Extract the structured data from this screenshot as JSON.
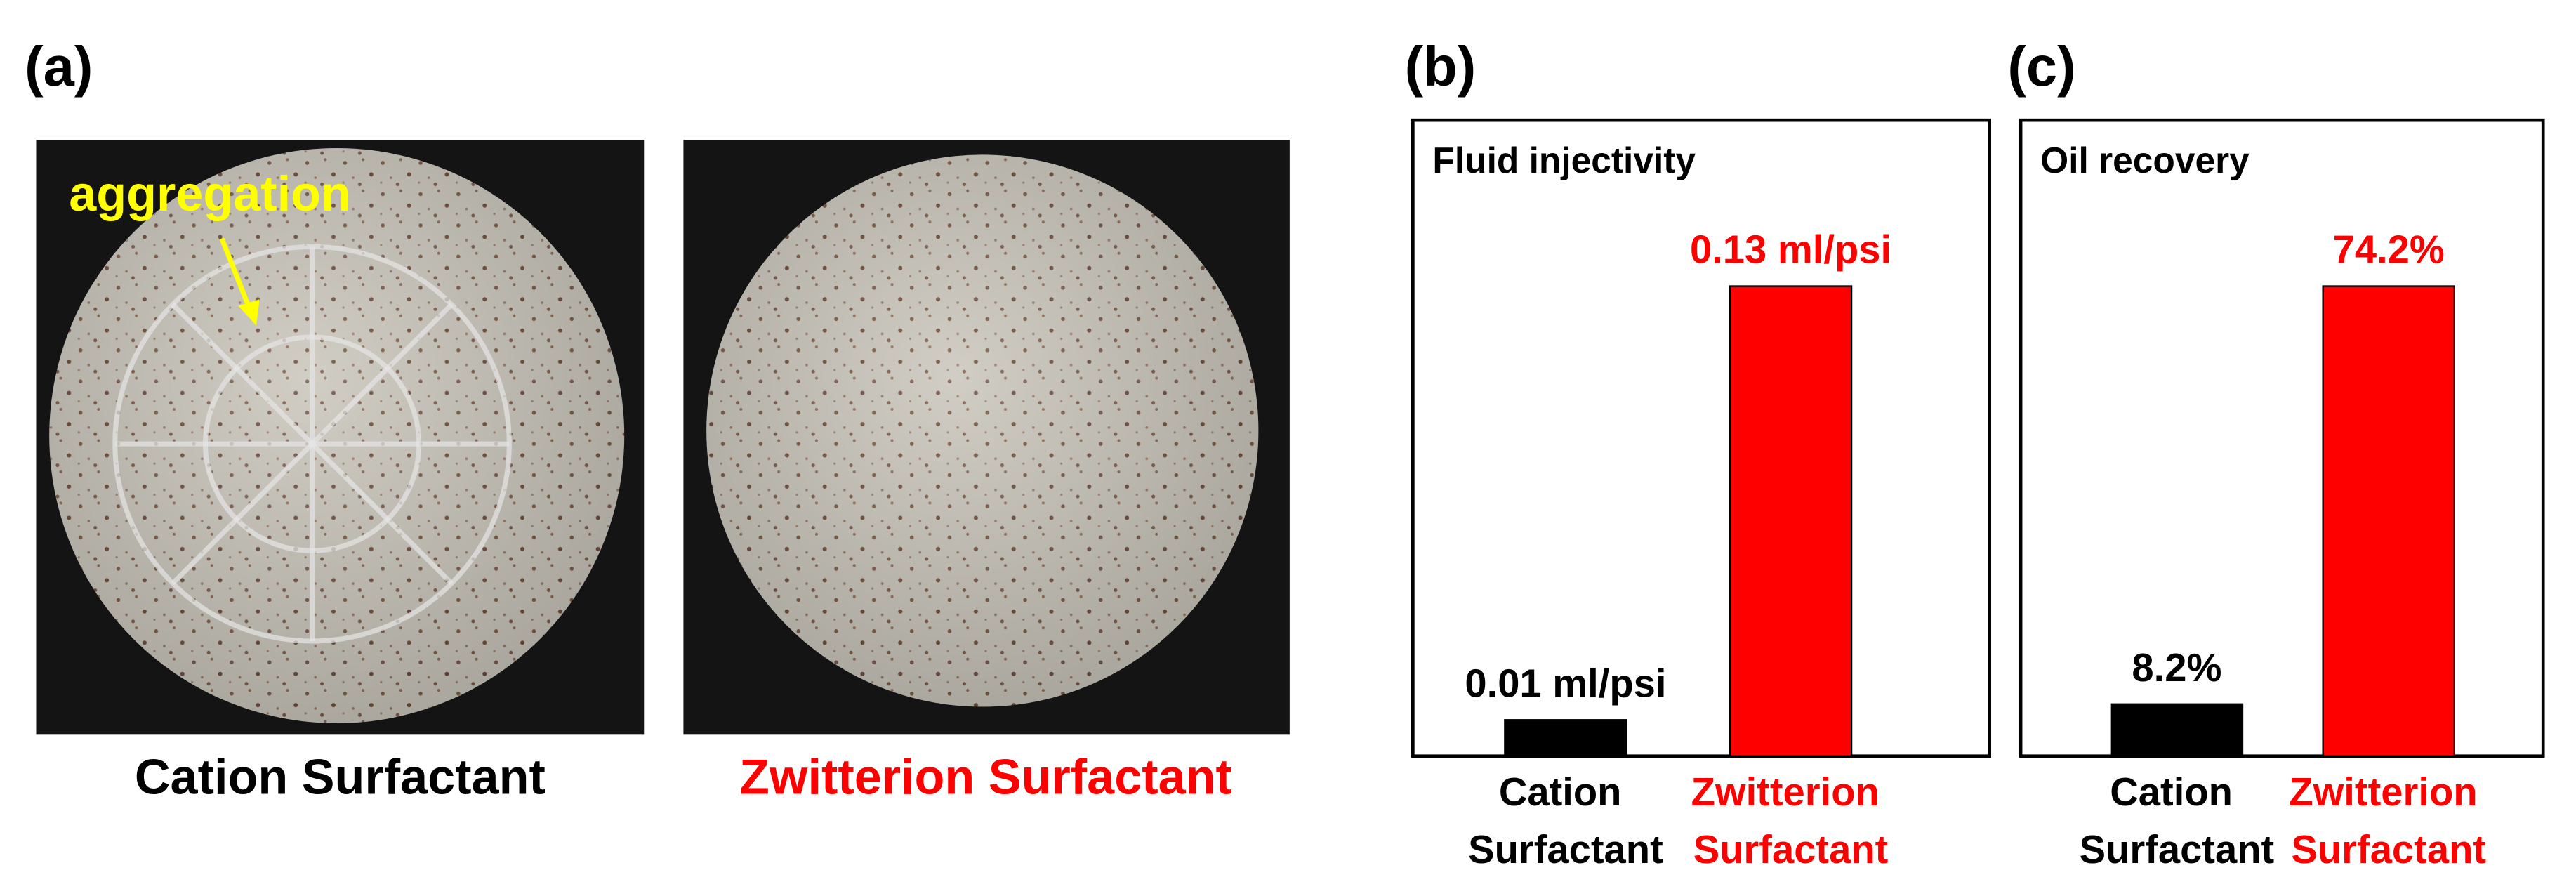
{
  "figure": {
    "panel_labels": [
      "(a)",
      "(b)",
      "(c)"
    ],
    "annotation": "aggregation",
    "captions": [
      "Cation Surfactant",
      "Zwitterion Surfactant"
    ],
    "caption_colors": [
      "#000000",
      "#ff0000"
    ]
  },
  "chart_data": [
    {
      "type": "bar",
      "title": "Fluid injectivity",
      "categories": [
        "Cation Surfactant",
        "Zwitterion Surfactant"
      ],
      "values": [
        0.01,
        0.13
      ],
      "value_labels": [
        "0.01 ml/psi",
        "0.13 ml/psi"
      ],
      "colors": [
        "#000000",
        "#ff0000"
      ],
      "label_colors": [
        "#000000",
        "#ff0000"
      ]
    },
    {
      "type": "bar",
      "title": "Oil recovery",
      "categories": [
        "Cation Surfactant",
        "Zwitterion Surfactant"
      ],
      "values": [
        8.2,
        74.2
      ],
      "value_labels": [
        "8.2%",
        "74.2%"
      ],
      "colors": [
        "#000000",
        "#ff0000"
      ],
      "label_colors": [
        "#000000",
        "#ff0000"
      ]
    }
  ]
}
